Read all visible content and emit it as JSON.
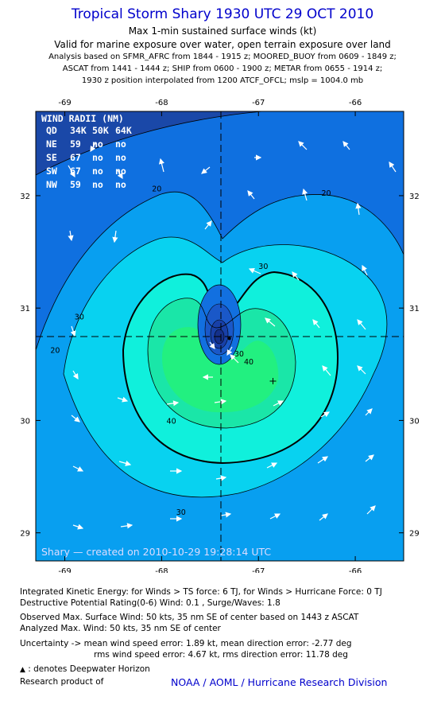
{
  "header": {
    "title": "Tropical Storm Shary 1930 UTC 29 OCT 2010",
    "line1": "Max 1-min sustained surface winds (kt)",
    "line2": "Valid for marine exposure over water, open terrain exposure over land",
    "line3": "Analysis based on SFMR_AFRC from 1844 - 1915 z; MOORED_BUOY from 0609 - 1849 z;",
    "line4": "ASCAT from 1441 - 1444 z; SHIP from 0600 - 1900 z; METAR from 0655 - 1914 z;",
    "line5": "1930 z position interpolated from 1200 ATCF_OFCL; mslp = 1004.0 mb"
  },
  "chart_data": {
    "type": "heatmap",
    "x_ticks": [
      "-69",
      "-68",
      "-67",
      "-66"
    ],
    "y_ticks": [
      "32",
      "31",
      "30",
      "29"
    ],
    "xlim": [
      -69.3,
      -65.5
    ],
    "ylim": [
      28.75,
      32.75
    ],
    "center": {
      "lon": -67.3,
      "lat": 30.73
    },
    "max_wind_marker": {
      "lon": -66.85,
      "lat": 30.35
    },
    "contour_levels": [
      "20",
      "30",
      "40"
    ],
    "contour_labels": [
      {
        "text": "20",
        "lon": -68.05,
        "lat": 32.04
      },
      {
        "text": "20",
        "lon": -66.3,
        "lat": 32.0
      },
      {
        "text": "30",
        "lon": -66.95,
        "lat": 31.35
      },
      {
        "text": "30",
        "lon": -68.85,
        "lat": 30.9
      },
      {
        "text": "20",
        "lon": -69.1,
        "lat": 30.6
      },
      {
        "text": "40",
        "lon": -67.9,
        "lat": 29.97
      },
      {
        "text": "30",
        "lon": -67.8,
        "lat": 29.16
      },
      {
        "text": "40",
        "lon": -67.1,
        "lat": 30.5
      },
      {
        "text": "30",
        "lon": -67.2,
        "lat": 30.57
      }
    ],
    "wind_radii": {
      "title": "WIND RADII (NM)",
      "columns": [
        "QD",
        "34K",
        "50K",
        "64K"
      ],
      "rows": [
        [
          "NE",
          "59",
          "no",
          "no"
        ],
        [
          "SE",
          "67",
          "no",
          "no"
        ],
        [
          "SW",
          "67",
          "no",
          "no"
        ],
        [
          "NW",
          "59",
          "no",
          "no"
        ]
      ]
    },
    "stamp": "Shary — created on 2010-10-29 19:28:14 UTC"
  },
  "footer": {
    "ike": "Integrated Kinetic Energy:  for Winds > TS force: 6 TJ,  for Winds > Hurricane Force: 0 TJ",
    "dpr": "Destructive Potential Rating(0-6)   Wind: 0.1 , Surge/Waves: 1.8",
    "observed": "Observed Max. Surface Wind: 50 kts, 35 nm SE of center based on 1443 z ASCAT",
    "analyzed": "Analyzed Max. Wind: 50 kts, 35 nm SE of center",
    "uncertainty1": "Uncertainty -> mean wind speed error: 1.89 kt,   mean direction error:  -2.77 deg",
    "uncertainty2": "rms wind speed error: 4.67 kt,   rms direction error: 11.78 deg",
    "deepwater": ": denotes Deepwater Horizon",
    "research": "Research product of",
    "credit": "NOAA / AOML / Hurricane Research Division"
  },
  "colors": {
    "level_lt20": "#1a48a8",
    "level_20_25": "#0f70e0",
    "level_25_30": "#089ff0",
    "level_30_35": "#08d2f0",
    "level_35_40": "#10f0dc",
    "level_40_45": "#1ae6a8",
    "level_45_50": "#22f080",
    "title": "#0000cc"
  }
}
